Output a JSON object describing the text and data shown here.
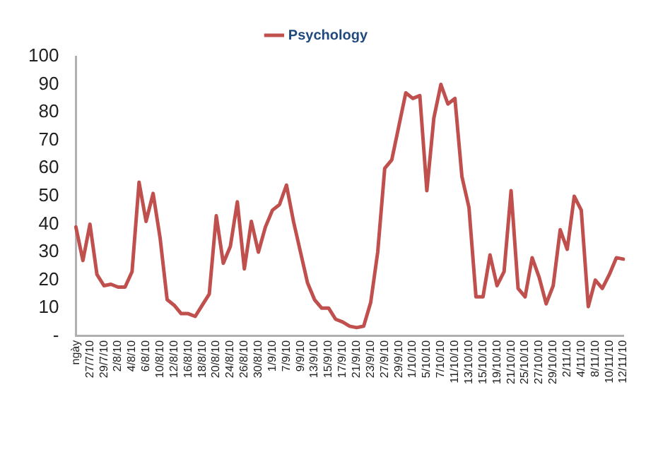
{
  "chart_data": {
    "type": "line",
    "categories": [
      "ngày",
      null,
      "27/7/10",
      null,
      "29/7/10",
      null,
      "2/8/10",
      null,
      "4/8/10",
      null,
      "6/8/10",
      null,
      "10/8/10",
      null,
      "12/8/10",
      null,
      "16/8/10",
      null,
      "18/8/10",
      null,
      "20/8/10",
      null,
      "24/8/10",
      null,
      "26/8/10",
      null,
      "30/8/10",
      null,
      "1/9/10",
      null,
      "7/9/10",
      null,
      "9/9/10",
      null,
      "13/9/10",
      null,
      "15/9/10",
      null,
      "17/9/10",
      null,
      "21/9/10",
      null,
      "23/9/10",
      null,
      "27/9/10",
      null,
      "29/9/10",
      null,
      "1/10/10",
      null,
      "5/10/10",
      null,
      "7/10/10",
      null,
      "11/10/10",
      null,
      "13/10/10",
      null,
      "15/10/10",
      null,
      "19/10/10",
      null,
      "21/10/10",
      null,
      "25/10/10",
      null,
      "27/10/10",
      null,
      "29/10/10",
      null,
      "2/11/10",
      null,
      "4/11/10",
      null,
      "8/11/10",
      null,
      "10/11/10",
      null,
      "12/11/10"
    ],
    "series": [
      {
        "name": "Psychology",
        "color": "#c0504d",
        "values": [
          39,
          27,
          40,
          22,
          18,
          18.5,
          17.5,
          17.5,
          23,
          55,
          41,
          51,
          35,
          13,
          11,
          8,
          8,
          7,
          11,
          15,
          43,
          26,
          32,
          48,
          24,
          41,
          30,
          39,
          45,
          47,
          54,
          41,
          30,
          19,
          13,
          10,
          10,
          6,
          5,
          3.5,
          3,
          3.5,
          12,
          30,
          60,
          63,
          75,
          87,
          85,
          86,
          52,
          78,
          90,
          83,
          85,
          57,
          46,
          14,
          14,
          29,
          18,
          23,
          52,
          17,
          14,
          28,
          21,
          11.5,
          18,
          38,
          31,
          50,
          45,
          10.5,
          20,
          17,
          22,
          28,
          27.5
        ]
      }
    ],
    "ylim": [
      0,
      100
    ],
    "yticks": [
      {
        "value": 0,
        "label": "-"
      },
      10,
      20,
      30,
      40,
      50,
      60,
      70,
      80,
      90,
      100
    ],
    "grid": false,
    "legend": "top",
    "marker": "none",
    "line_style": "solid"
  }
}
